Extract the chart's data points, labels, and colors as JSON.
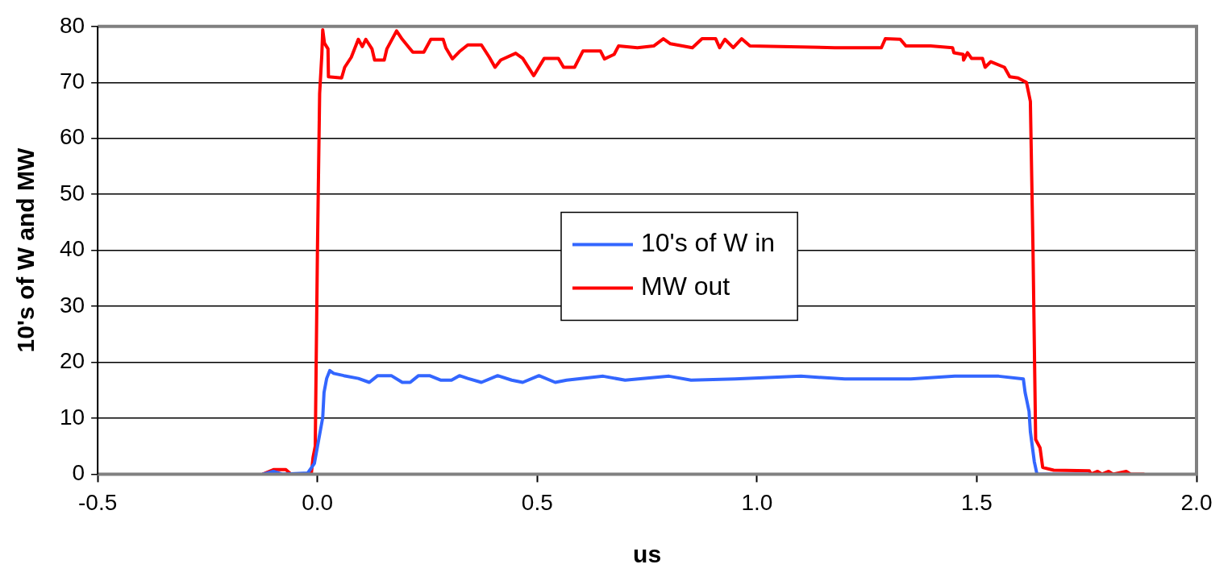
{
  "chart_data": {
    "type": "line",
    "xlabel": "us",
    "ylabel": "10's of W and MW",
    "xlim": [
      -0.5,
      2.0
    ],
    "xticks": [
      -0.5,
      {
        "value": 0,
        "label": "0.0"
      },
      0.5,
      {
        "value": 1,
        "label": "1.0"
      },
      1.5,
      {
        "value": 2,
        "label": "2.0"
      }
    ],
    "ylim": [
      0,
      80
    ],
    "yticks": [
      0,
      10,
      20,
      30,
      40,
      50,
      60,
      70,
      80
    ],
    "grid": "y",
    "legend": "center",
    "marker": "none",
    "line_style": "solid",
    "series": [
      {
        "name": "10's of W in",
        "color": "#3366ff",
        "x": [
          -0.124,
          -0.1,
          -0.08,
          -0.022,
          -0.007,
          0.012,
          0.015,
          0.021,
          0.028,
          0.037,
          0.06,
          0.093,
          0.118,
          0.137,
          0.168,
          0.193,
          0.211,
          0.23,
          0.255,
          0.28,
          0.305,
          0.323,
          0.342,
          0.373,
          0.41,
          0.442,
          0.467,
          0.504,
          0.541,
          0.567,
          0.65,
          0.7,
          0.8,
          0.85,
          0.95,
          1.1,
          1.2,
          1.35,
          1.45,
          1.55,
          1.606,
          1.61,
          1.619,
          1.622,
          1.631,
          1.637,
          1.756
        ],
        "values": [
          0,
          0.5,
          0,
          0.2,
          1.9,
          10.1,
          14.6,
          17.1,
          18.5,
          18,
          17.6,
          17.1,
          16.4,
          17.6,
          17.6,
          16.4,
          16.4,
          17.6,
          17.6,
          16.8,
          16.8,
          17.6,
          17.1,
          16.4,
          17.6,
          16.8,
          16.4,
          17.6,
          16.4,
          16.8,
          17.5,
          16.8,
          17.5,
          16.8,
          17.0,
          17.5,
          17.0,
          17.0,
          17.5,
          17.5,
          17,
          14.6,
          11.2,
          7.6,
          2.2,
          0,
          0
        ]
      },
      {
        "name": "MW out",
        "color": "#ff0000",
        "x": [
          -0.124,
          -0.1,
          -0.072,
          -0.06,
          -0.014,
          -0.01,
          -0.005,
          0,
          0.005,
          0.01,
          0.012,
          0.016,
          0.024,
          0.025,
          0.055,
          0.062,
          0.077,
          0.093,
          0.102,
          0.11,
          0.124,
          0.13,
          0.152,
          0.158,
          0.18,
          0.193,
          0.217,
          0.242,
          0.258,
          0.286,
          0.292,
          0.307,
          0.323,
          0.342,
          0.373,
          0.391,
          0.404,
          0.417,
          0.451,
          0.467,
          0.492,
          0.516,
          0.548,
          0.56,
          0.585,
          0.604,
          0.644,
          0.653,
          0.675,
          0.685,
          0.728,
          0.765,
          0.787,
          0.803,
          0.853,
          0.875,
          0.906,
          0.915,
          0.927,
          0.946,
          0.965,
          0.984,
          1.177,
          1.283,
          1.292,
          1.326,
          1.339,
          1.395,
          1.445,
          1.448,
          1.469,
          1.47,
          1.479,
          1.488,
          1.513,
          1.519,
          1.532,
          1.563,
          1.575,
          1.594,
          1.613,
          1.622,
          1.628,
          1.634,
          1.644,
          1.65,
          1.675,
          1.756,
          1.76,
          1.775,
          1.785,
          1.8,
          1.81,
          1.84,
          1.85,
          1.88
        ],
        "values": [
          0,
          0.8,
          0.8,
          0,
          0,
          3,
          5,
          40,
          68,
          75,
          79.4,
          77,
          76,
          71,
          70.8,
          72.7,
          74.5,
          77.7,
          76.4,
          77.7,
          76,
          74,
          74,
          76,
          79.2,
          77.7,
          75.4,
          75.4,
          77.7,
          77.7,
          76.2,
          74.2,
          75.5,
          76.7,
          76.7,
          74.5,
          72.7,
          74,
          75.2,
          74.3,
          71.2,
          74.3,
          74.3,
          72.7,
          72.7,
          75.6,
          75.6,
          74.2,
          75,
          76.5,
          76.2,
          76.5,
          77.8,
          76.9,
          76.2,
          77.8,
          77.8,
          76.2,
          77.7,
          76.2,
          77.8,
          76.5,
          76.2,
          76.2,
          77.8,
          77.7,
          76.5,
          76.5,
          76.2,
          75.3,
          75,
          74,
          75.3,
          74.3,
          74.3,
          72.7,
          73.7,
          72.7,
          71,
          70.8,
          70,
          66.6,
          40,
          6.2,
          4.7,
          1.2,
          0.7,
          0.6,
          0,
          0.5,
          0,
          0.5,
          0,
          0.5,
          0,
          0
        ]
      }
    ]
  }
}
